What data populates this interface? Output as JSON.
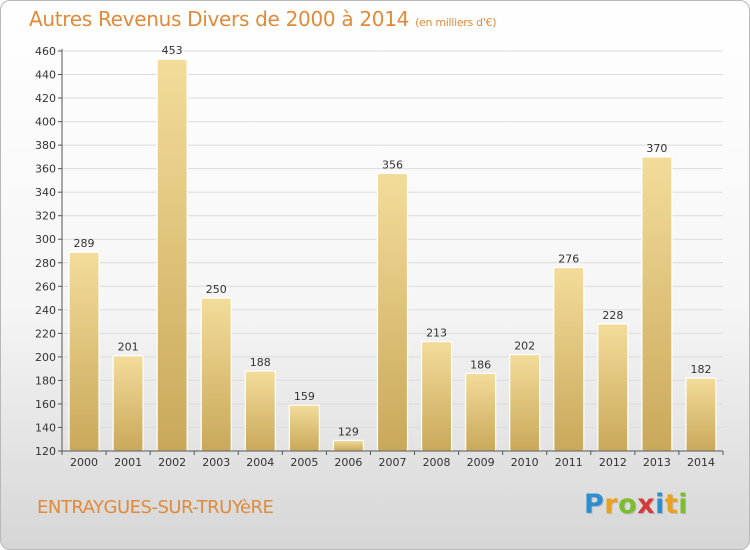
{
  "title": "Autres Revenus Divers de 2000 à 2014",
  "subtitle": "(en milliers d'€)",
  "place_name": "ENTRAYGUES-SUR-TRUYèRE",
  "logo": {
    "text": "Proxiti",
    "letter_colors": [
      "#2a8fd0",
      "#e8a21e",
      "#7bbd2e",
      "#d33a3a",
      "#2a8fd0",
      "#e8a21e",
      "#7bbd2e"
    ]
  },
  "colors": {
    "title": "#e08a3a",
    "bar_light": "#f3dc9a",
    "bar_dark": "#c9a85a",
    "axis": "#555555",
    "grid": "#dcdcdc"
  },
  "chart_data": {
    "type": "bar",
    "categories": [
      "2000",
      "2001",
      "2002",
      "2003",
      "2004",
      "2005",
      "2006",
      "2007",
      "2008",
      "2009",
      "2010",
      "2011",
      "2012",
      "2013",
      "2014"
    ],
    "values": [
      289,
      201,
      453,
      250,
      188,
      159,
      129,
      356,
      213,
      186,
      202,
      276,
      228,
      370,
      182
    ],
    "ylim": [
      120,
      460
    ],
    "yticks": [
      120,
      140,
      160,
      180,
      200,
      220,
      240,
      260,
      280,
      300,
      320,
      340,
      360,
      380,
      400,
      420,
      440,
      460
    ],
    "grid": true,
    "data_labels": true
  }
}
